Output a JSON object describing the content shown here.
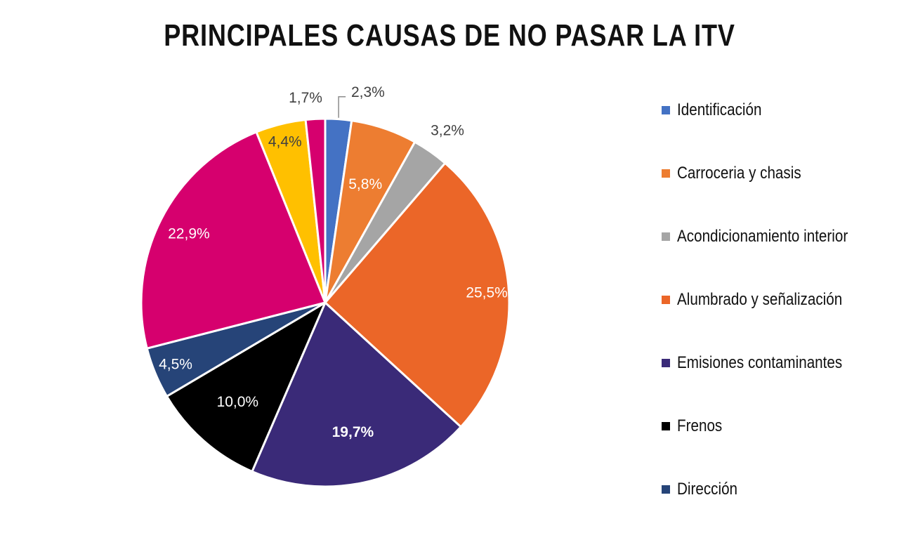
{
  "chart_data": {
    "type": "pie",
    "title": "PRINCIPALES CAUSAS DE NO PASAR LA ITV",
    "legend_position": "right",
    "slices": [
      {
        "name": "Identificación",
        "value": 2.3,
        "label": "2,3%",
        "color": "#4472C4",
        "label_color": "#404040"
      },
      {
        "name": "Carroceria y chasis",
        "value": 5.8,
        "label": "5,8%",
        "color": "#ED7D31",
        "label_color": "#ffffff"
      },
      {
        "name": "Acondicionamiento interior",
        "value": 3.2,
        "label": "3,2%",
        "color": "#A5A5A5",
        "label_color": "#404040"
      },
      {
        "name": "Alumbrado y señalización",
        "value": 25.5,
        "label": "25,5%",
        "color": "#EB6628",
        "label_color": "#ffffff"
      },
      {
        "name": "Emisiones contaminantes",
        "value": 19.7,
        "label": "19,7%",
        "color": "#3A2A78",
        "label_color": "#ffffff"
      },
      {
        "name": "Frenos",
        "value": 10.0,
        "label": "10,0%",
        "color": "#000000",
        "label_color": "#ffffff"
      },
      {
        "name": "Dirección",
        "value": 4.5,
        "label": "4,5%",
        "color": "#264478",
        "label_color": "#ffffff"
      },
      {
        "name": "",
        "value": 22.9,
        "label": "22,9%",
        "color": "#D6006E",
        "label_color": "#ffffff"
      },
      {
        "name": "",
        "value": 4.4,
        "label": "4,4%",
        "color": "#FFC000",
        "label_color": "#404040"
      },
      {
        "name": "",
        "value": 1.7,
        "label": "1,7%",
        "color": "#D6006E",
        "label_color": "#404040"
      }
    ],
    "legend": [
      {
        "label": "Identificación",
        "color": "#4472C4"
      },
      {
        "label": "Carroceria y chasis",
        "color": "#ED7D31"
      },
      {
        "label": "Acondicionamiento interior",
        "color": "#A5A5A5"
      },
      {
        "label": "Alumbrado y señalización",
        "color": "#EB6628"
      },
      {
        "label": "Emisiones contaminantes",
        "color": "#3A2A78"
      },
      {
        "label": "Frenos",
        "color": "#000000"
      },
      {
        "label": "Dirección",
        "color": "#264478"
      }
    ]
  }
}
